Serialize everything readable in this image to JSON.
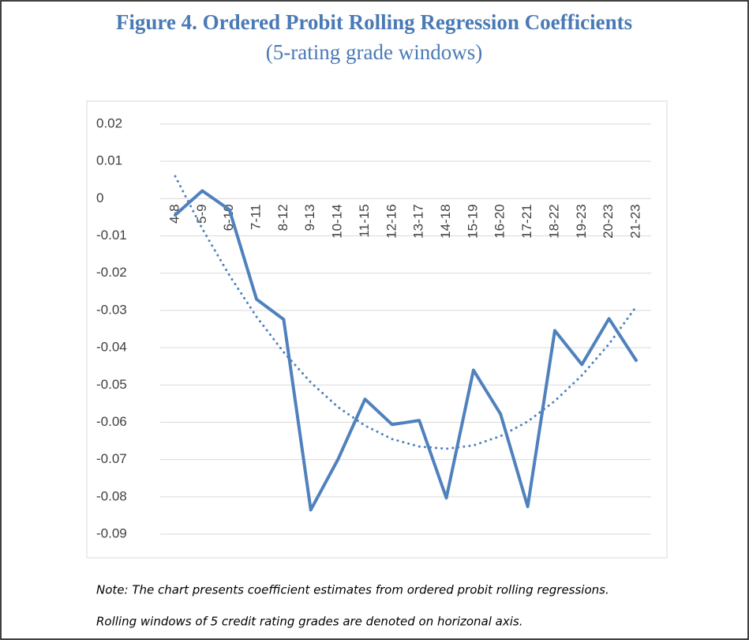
{
  "chart_data": {
    "type": "line",
    "title": "Figure 4. Ordered Probit Rolling Regression Coefficients",
    "subtitle": "(5-rating grade windows)",
    "categories": [
      "4-8",
      "5-9",
      "6-10",
      "7-11",
      "8-12",
      "9-13",
      "10-14",
      "11-15",
      "12-16",
      "13-17",
      "14-18",
      "15-19",
      "16-20",
      "17-21",
      "18-22",
      "19-23",
      "20-23",
      "21-23"
    ],
    "series": [
      {
        "color": "#4f81bd",
        "values": [
          -0.0044,
          0.0021,
          -0.003,
          -0.027,
          -0.0324,
          -0.0835,
          -0.07,
          -0.0538,
          -0.0606,
          -0.0595,
          -0.0803,
          -0.046,
          -0.0578,
          -0.0826,
          -0.0354,
          -0.0445,
          -0.0322,
          -0.0434
        ]
      },
      {
        "color": "#4f81bd",
        "style": "dotted",
        "values": [
          0.006,
          -0.0081,
          -0.0206,
          -0.0317,
          -0.0412,
          -0.0493,
          -0.0559,
          -0.0609,
          -0.0645,
          -0.0665,
          -0.0671,
          -0.0662,
          -0.0637,
          -0.0598,
          -0.0543,
          -0.0474,
          -0.039,
          -0.029
        ]
      }
    ],
    "ylim": [
      -0.09,
      0.02
    ],
    "yticks": [
      0.02,
      0.01,
      0,
      -0.01,
      -0.02,
      -0.03,
      -0.04,
      -0.05,
      -0.06,
      -0.07,
      -0.08,
      -0.09
    ],
    "grid": true,
    "notes": [
      "Note: The chart presents coefficient estimates from ordered probit rolling regressions.",
      "Rolling windows of 5 credit rating grades are denoted on horizonal axis."
    ]
  }
}
